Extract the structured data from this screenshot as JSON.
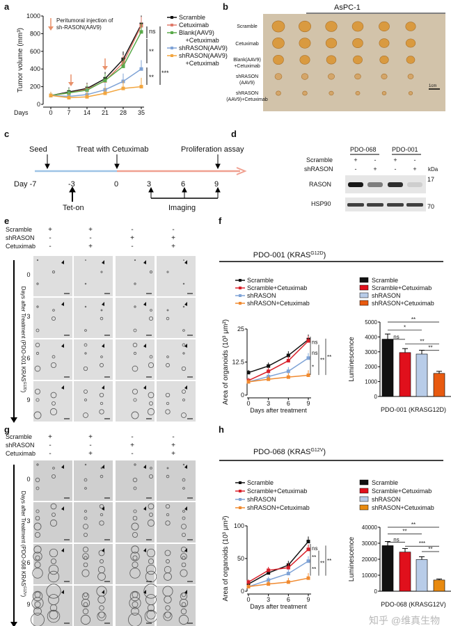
{
  "panel_labels": [
    "a",
    "b",
    "c",
    "d",
    "e",
    "f",
    "g",
    "h"
  ],
  "panel_a": {
    "annotation_line1": "Peritumoral injection of",
    "annotation_line2": "sh-RASON(AAV9)",
    "sig": [
      "ns",
      "**",
      "**",
      "***"
    ]
  },
  "panel_b": {
    "title": "AsPC-1",
    "rows": [
      "Scramble",
      "Cetuximab",
      "Blank(AAV9)",
      "+Cetuximab",
      "shRASON",
      "(AAV9)",
      "shRASON",
      "(AAV9)+Cetuximab"
    ],
    "scale_bar": "1cm",
    "photo_bg": "#d2c3aa"
  },
  "panel_c": {
    "top": [
      "Seed",
      "Treat with Cetuximab",
      "Proliferation assay"
    ],
    "days": [
      "Day -7",
      "-3",
      "0",
      "3",
      "6",
      "9"
    ],
    "bottom": [
      "Tet-on",
      "Imaging"
    ],
    "pre_color": "#9ec3e6",
    "post_color": "#f0a090"
  },
  "panel_d": {
    "groups": [
      "PDO-068",
      "PDO-001"
    ],
    "row_labels": [
      "Scramble",
      "shRASON"
    ],
    "scramble": [
      "+",
      "-",
      "+",
      "-"
    ],
    "shrason": [
      "-",
      "+",
      "-",
      "+"
    ],
    "kda": "kDa",
    "bands": [
      "RASON",
      "HSP90"
    ],
    "markers": [
      "17",
      "70"
    ],
    "rason_intensity": [
      0.9,
      0.45,
      0.8,
      0.1
    ]
  },
  "panel_e": {
    "scramble": [
      "+",
      "+",
      "-",
      "-"
    ],
    "shrason": [
      "-",
      "-",
      "+",
      "+"
    ],
    "cetuximab": [
      "-",
      "+",
      "-",
      "+"
    ],
    "labels": [
      "Scramble",
      "shRASON",
      "Cetuximab"
    ],
    "ylabel": "Days after Treatment (PDO-001 KRAS",
    "ylabel_sup": "G12D",
    "rows": [
      "0",
      "3",
      "6",
      "9"
    ]
  },
  "panel_g": {
    "scramble": [
      "+",
      "+",
      "-",
      "-"
    ],
    "shrason": [
      "-",
      "-",
      "+",
      "+"
    ],
    "cetuximab": [
      "-",
      "+",
      "-",
      "+"
    ],
    "labels": [
      "Scramble",
      "shRASON",
      "Cetuximab"
    ],
    "ylabel": "Days after Treatment (PDO-068 KRAS",
    "ylabel_sup": "G12V",
    "rows": [
      "0",
      "3",
      "6",
      "9"
    ]
  },
  "panel_f_title": {
    "main": "PDO-001 (KRAS",
    "sup": "G12D",
    "end": ")"
  },
  "panel_h_title": {
    "main": "PDO-068 (KRAS",
    "sup": "G12V",
    "end": ")"
  },
  "watermark": "知乎 @维真生物",
  "chart_data": [
    {
      "id": "a",
      "type": "line",
      "xlabel": "Days",
      "ylabel": "Tumor volume (mm³)",
      "x": [
        0,
        7,
        14,
        21,
        28,
        35
      ],
      "ylim": [
        0,
        1000
      ],
      "yticks": [
        0,
        200,
        400,
        600,
        800,
        1000
      ],
      "series": [
        {
          "name": "Scramble",
          "color": "#111111",
          "values": [
            100,
            140,
            180,
            290,
            510,
            905
          ]
        },
        {
          "name": "Cetuximab",
          "color": "#e07a6a",
          "values": [
            100,
            130,
            170,
            265,
            470,
            890
          ]
        },
        {
          "name": "Blank(AAV9) +Cetuximab",
          "color": "#5aaa4a",
          "values": [
            100,
            130,
            160,
            270,
            430,
            820
          ]
        },
        {
          "name": "shRASON(AAV9)",
          "color": "#7fa3d6",
          "values": [
            100,
            90,
            110,
            165,
            260,
            400
          ]
        },
        {
          "name": "shRASON(AAV9) +Cetuximab",
          "color": "#f2a640",
          "values": [
            100,
            75,
            85,
            125,
            180,
            200
          ]
        }
      ]
    },
    {
      "id": "f-line",
      "type": "line",
      "xlabel": "Days after treatment",
      "ylabel": "Area of organoids (10³ μm²)",
      "x": [
        0,
        3,
        6,
        9
      ],
      "ylim": [
        0,
        25
      ],
      "yticks": [
        0,
        12.5,
        25
      ],
      "sig": [
        "ns",
        "ns",
        "*",
        "**",
        "**"
      ],
      "series": [
        {
          "name": "Scramble",
          "color": "#111111",
          "values": [
            8.5,
            11,
            15,
            21
          ]
        },
        {
          "name": "Scramble+Cetuximab",
          "color": "#d9202a",
          "values": [
            5.5,
            9,
            13,
            20.5
          ]
        },
        {
          "name": "shRASON",
          "color": "#7fa3d6",
          "values": [
            5,
            7,
            9,
            14
          ]
        },
        {
          "name": "shRASON+Cetuximab",
          "color": "#f08a30",
          "values": [
            5,
            6,
            6.8,
            7.5
          ]
        }
      ]
    },
    {
      "id": "f-bar",
      "type": "bar",
      "xlabel": "PDO-001 (KRASG12D)",
      "ylabel": "Luminescence",
      "ylim": [
        0,
        5000
      ],
      "yticks": [
        0,
        1000,
        2000,
        3000,
        4000,
        5000
      ],
      "categories": [
        "Scramble",
        "Scramble+Cetuximab",
        "shRASON",
        "shRASON+Cetuximab"
      ],
      "values": [
        3850,
        2950,
        2850,
        1550
      ],
      "colors": [
        "#111111",
        "#e0101c",
        "#b8cce8",
        "#e85a10"
      ],
      "sig": [
        "**",
        "*",
        "ns",
        "**",
        "**"
      ]
    },
    {
      "id": "h-line",
      "type": "line",
      "xlabel": "Days after treatment",
      "ylabel": "Area of organoids (10³ μm²)",
      "x": [
        0,
        3,
        6,
        9
      ],
      "ylim": [
        0,
        100
      ],
      "yticks": [
        0,
        50,
        100
      ],
      "sig": [
        "ns",
        "**",
        "**",
        "**",
        "**"
      ],
      "series": [
        {
          "name": "Scramble",
          "color": "#111111",
          "values": [
            11,
            28,
            40,
            76
          ]
        },
        {
          "name": "Scramble+Cetuximab",
          "color": "#d9202a",
          "values": [
            14,
            32,
            36,
            64
          ]
        },
        {
          "name": "shRASON",
          "color": "#7fa3d6",
          "values": [
            7,
            17,
            27,
            46
          ]
        },
        {
          "name": "shRASON+Cetuximab",
          "color": "#f08a30",
          "values": [
            7,
            11,
            14,
            20
          ]
        }
      ]
    },
    {
      "id": "h-bar",
      "type": "bar",
      "xlabel": "PDO-068 (KRASG12V)",
      "ylabel": "Luminescence",
      "ylim": [
        0,
        40000
      ],
      "yticks": [
        0,
        10000,
        20000,
        30000,
        40000
      ],
      "categories": [
        "Scramble",
        "Scramble+Cetuximab",
        "shRASON",
        "shRASON+Cetuximab"
      ],
      "values": [
        28500,
        24500,
        19800,
        7000
      ],
      "colors": [
        "#111111",
        "#e0101c",
        "#b8cce8",
        "#e88a10"
      ],
      "sig": [
        "**",
        "**",
        "ns",
        "***",
        "**"
      ]
    }
  ]
}
